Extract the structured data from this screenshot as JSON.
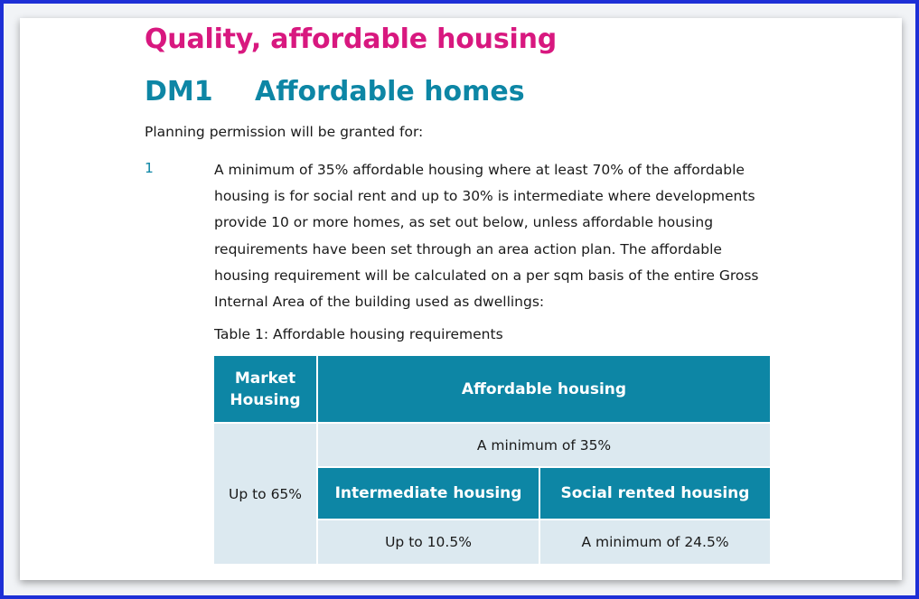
{
  "section_title": "Quality, affordable housing",
  "policy": {
    "code": "DM1",
    "title": "Affordable homes"
  },
  "intro": "Planning permission will be granted for:",
  "item": {
    "number": "1",
    "lines": [
      "A minimum of 35% affordable housing where at least 70% of the affordable",
      "housing is for social rent and up to 30% is intermediate where developments",
      "provide 10 or more homes, as set out below, unless affordable housing",
      "requirements have been set through an area action plan. The affordable",
      "housing requirement will be calculated on a per sqm basis of the entire Gross",
      "Internal Area of the building used as dwellings:"
    ]
  },
  "table": {
    "caption": "Table 1: Affordable housing requirements",
    "market_header_line1": "Market",
    "market_header_line2": "Housing",
    "affordable_header": "Affordable housing",
    "market_value": "Up to 65%",
    "affordable_value": "A minimum of 35%",
    "intermediate_header": "Intermediate housing",
    "social_header": "Social rented housing",
    "intermediate_value": "Up to 10.5%",
    "social_value": "A minimum of 24.5%"
  },
  "colors": {
    "section_title": "#d8187f",
    "accent": "#0d86a5",
    "table_value_bg": "#dce9f0",
    "frame": "#1d2fd6"
  }
}
